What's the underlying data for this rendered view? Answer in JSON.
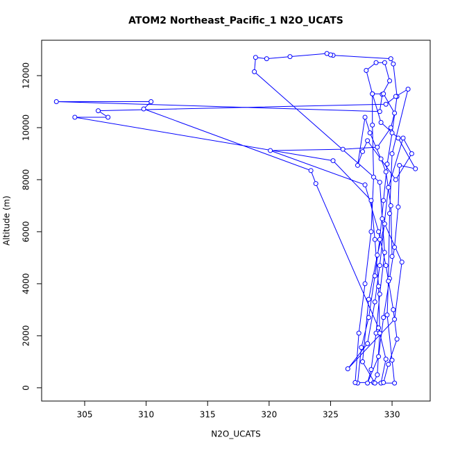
{
  "chart_data": {
    "type": "line-points",
    "title": "ATOM2 Northeast_Pacific_1 N2O_UCATS",
    "x_label": "N2O_UCATS",
    "y_label": "Altitude (m)",
    "color": "#0000ff",
    "xlim": [
      301.5,
      333.1
    ],
    "ylim": [
      -510,
      13360
    ],
    "xticks": [
      305,
      310,
      315,
      320,
      325,
      330
    ],
    "yticks": [
      0,
      2000,
      4000,
      6000,
      8000,
      10000,
      12000
    ],
    "x": [
      327.2,
      327.5,
      328.1,
      328.6,
      329.0,
      329.3,
      329.6,
      330.0,
      330.4,
      330.1,
      329.9,
      325.2,
      325.0,
      324.7,
      321.7,
      319.8,
      318.9,
      318.8,
      329.0,
      329.2,
      329.4,
      329.0,
      328.7,
      328.3,
      328.0,
      328.9,
      329.3,
      329.8,
      330.2,
      330.5,
      330.6,
      331.9,
      330.5,
      329.1,
      328.4,
      327.9,
      328.7,
      329.4,
      329.8,
      329.2,
      329.0,
      302.7,
      310.4,
      309.8,
      323.4,
      323.8,
      328.9,
      329.5,
      329.1,
      330.2,
      330.0,
      329.6,
      329.7,
      329.8,
      330.0,
      331.3,
      330.3,
      329.5,
      306.1,
      306.9,
      304.2,
      325.2,
      328.3,
      328.6,
      328.9,
      329.0,
      328.8,
      328.5,
      327.0,
      327.3,
      327.8,
      328.3,
      328.5,
      328.4,
      328.4,
      329.3,
      330.2,
      329.9,
      328.8,
      326.0,
      320.1,
      327.8,
      328.9,
      329.5,
      330.1,
      330.4,
      329.7,
      329.3,
      328.6,
      327.6,
      328.1,
      328.8,
      329.4,
      330.8,
      330.2,
      326.4,
      328.0,
      328.6,
      329.0,
      329.7,
      330.9,
      331.6,
      330.3,
      328.0,
      327.6,
      327.2,
      327.8,
      328.2,
      329.1,
      329.5,
      329.9,
      330.0
    ],
    "values": [
      180,
      1550,
      2700,
      4300,
      5700,
      7200,
      8600,
      9800,
      11200,
      12450,
      12650,
      12780,
      12800,
      12850,
      12730,
      12650,
      12700,
      12150,
      7900,
      6500,
      5200,
      3600,
      2100,
      700,
      180,
      1200,
      2700,
      4200,
      5400,
      6950,
      8550,
      8420,
      9600,
      10200,
      11300,
      12200,
      12500,
      12500,
      11800,
      11280,
      10620,
      11000,
      11000,
      10720,
      8350,
      7850,
      2300,
      1100,
      180,
      180,
      1060,
      2800,
      4100,
      6700,
      9000,
      11480,
      11200,
      10900,
      10650,
      10400,
      10400,
      8730,
      7200,
      5700,
      3900,
      2100,
      500,
      200,
      200,
      2100,
      4000,
      6000,
      8100,
      10100,
      11300,
      11300,
      10560,
      10000,
      9250,
      9170,
      9120,
      7800,
      6000,
      4700,
      3000,
      1870,
      900,
      200,
      180,
      1000,
      3400,
      5100,
      6300,
      4830,
      2630,
      730,
      1700,
      3300,
      4700,
      7700,
      9600,
      9000,
      8000,
      9500,
      9080,
      8550,
      10400,
      9800,
      8800,
      8300,
      7000,
      5050
    ]
  }
}
